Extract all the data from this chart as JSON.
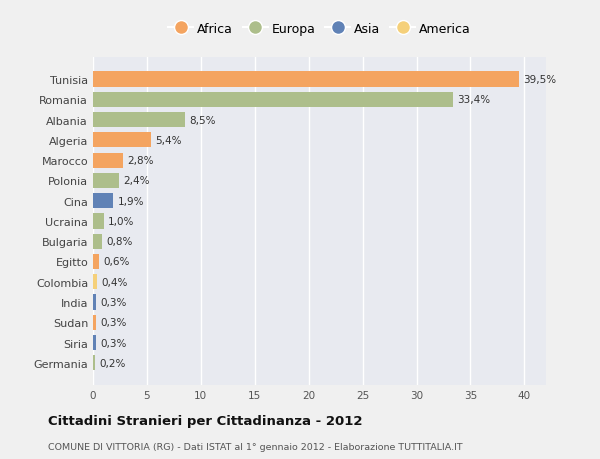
{
  "countries": [
    "Tunisia",
    "Romania",
    "Albania",
    "Algeria",
    "Marocco",
    "Polonia",
    "Cina",
    "Ucraina",
    "Bulgaria",
    "Egitto",
    "Colombia",
    "India",
    "Sudan",
    "Siria",
    "Germania"
  ],
  "values": [
    39.5,
    33.4,
    8.5,
    5.4,
    2.8,
    2.4,
    1.9,
    1.0,
    0.8,
    0.6,
    0.4,
    0.3,
    0.3,
    0.3,
    0.2
  ],
  "labels": [
    "39,5%",
    "33,4%",
    "8,5%",
    "5,4%",
    "2,8%",
    "2,4%",
    "1,9%",
    "1,0%",
    "0,8%",
    "0,6%",
    "0,4%",
    "0,3%",
    "0,3%",
    "0,3%",
    "0,2%"
  ],
  "continent": [
    "Africa",
    "Europa",
    "Europa",
    "Africa",
    "Africa",
    "Europa",
    "Asia",
    "Europa",
    "Europa",
    "Africa",
    "America",
    "Asia",
    "Africa",
    "Asia",
    "Europa"
  ],
  "colors": {
    "Africa": "#F4A460",
    "Europa": "#ADBE8B",
    "Asia": "#6082B6",
    "America": "#F5D07A"
  },
  "legend_order": [
    "Africa",
    "Europa",
    "Asia",
    "America"
  ],
  "title": "Cittadini Stranieri per Cittadinanza - 2012",
  "subtitle": "COMUNE DI VITTORIA (RG) - Dati ISTAT al 1° gennaio 2012 - Elaborazione TUTTITALIA.IT",
  "xlim": [
    0,
    42
  ],
  "xticks": [
    0,
    5,
    10,
    15,
    20,
    25,
    30,
    35,
    40
  ],
  "background_color": "#f0f0f0",
  "plot_bg_color": "#e8eaf0",
  "grid_color": "#ffffff",
  "bar_height": 0.75
}
